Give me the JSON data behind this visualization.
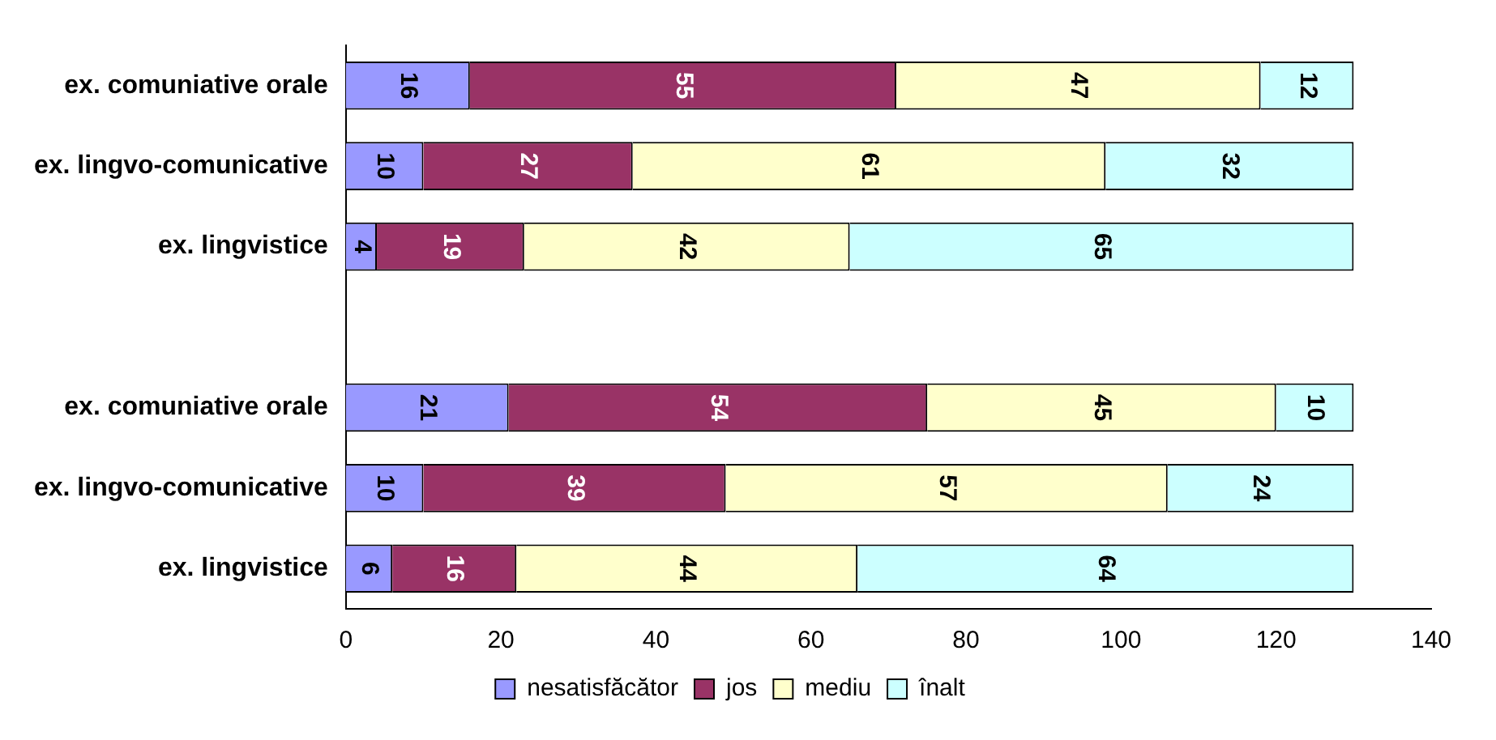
{
  "chart_data": {
    "type": "bar",
    "orientation": "horizontal",
    "stacked": true,
    "categories": [
      "ex. comuniative orale",
      "ex. lingvo-comunicative",
      "ex. lingvistice",
      null,
      "ex. comuniative orale",
      "ex. lingvo-comunicative",
      "ex. lingvistice"
    ],
    "series": [
      {
        "name": "nesatisfăcător",
        "color": "#9999ff",
        "values": [
          16,
          10,
          4,
          null,
          21,
          10,
          6
        ]
      },
      {
        "name": "jos",
        "color": "#993366",
        "values": [
          55,
          27,
          19,
          null,
          54,
          39,
          16
        ]
      },
      {
        "name": "mediu",
        "color": "#ffffcc",
        "values": [
          47,
          61,
          42,
          null,
          45,
          57,
          44
        ]
      },
      {
        "name": "înalt",
        "color": "#ccffff",
        "values": [
          12,
          32,
          65,
          null,
          10,
          24,
          64
        ]
      }
    ],
    "xlim": [
      0,
      140
    ],
    "xticks": [
      0,
      20,
      40,
      60,
      80,
      100,
      120,
      140
    ],
    "grid": false,
    "legend": "bottom",
    "data_labels": true
  }
}
